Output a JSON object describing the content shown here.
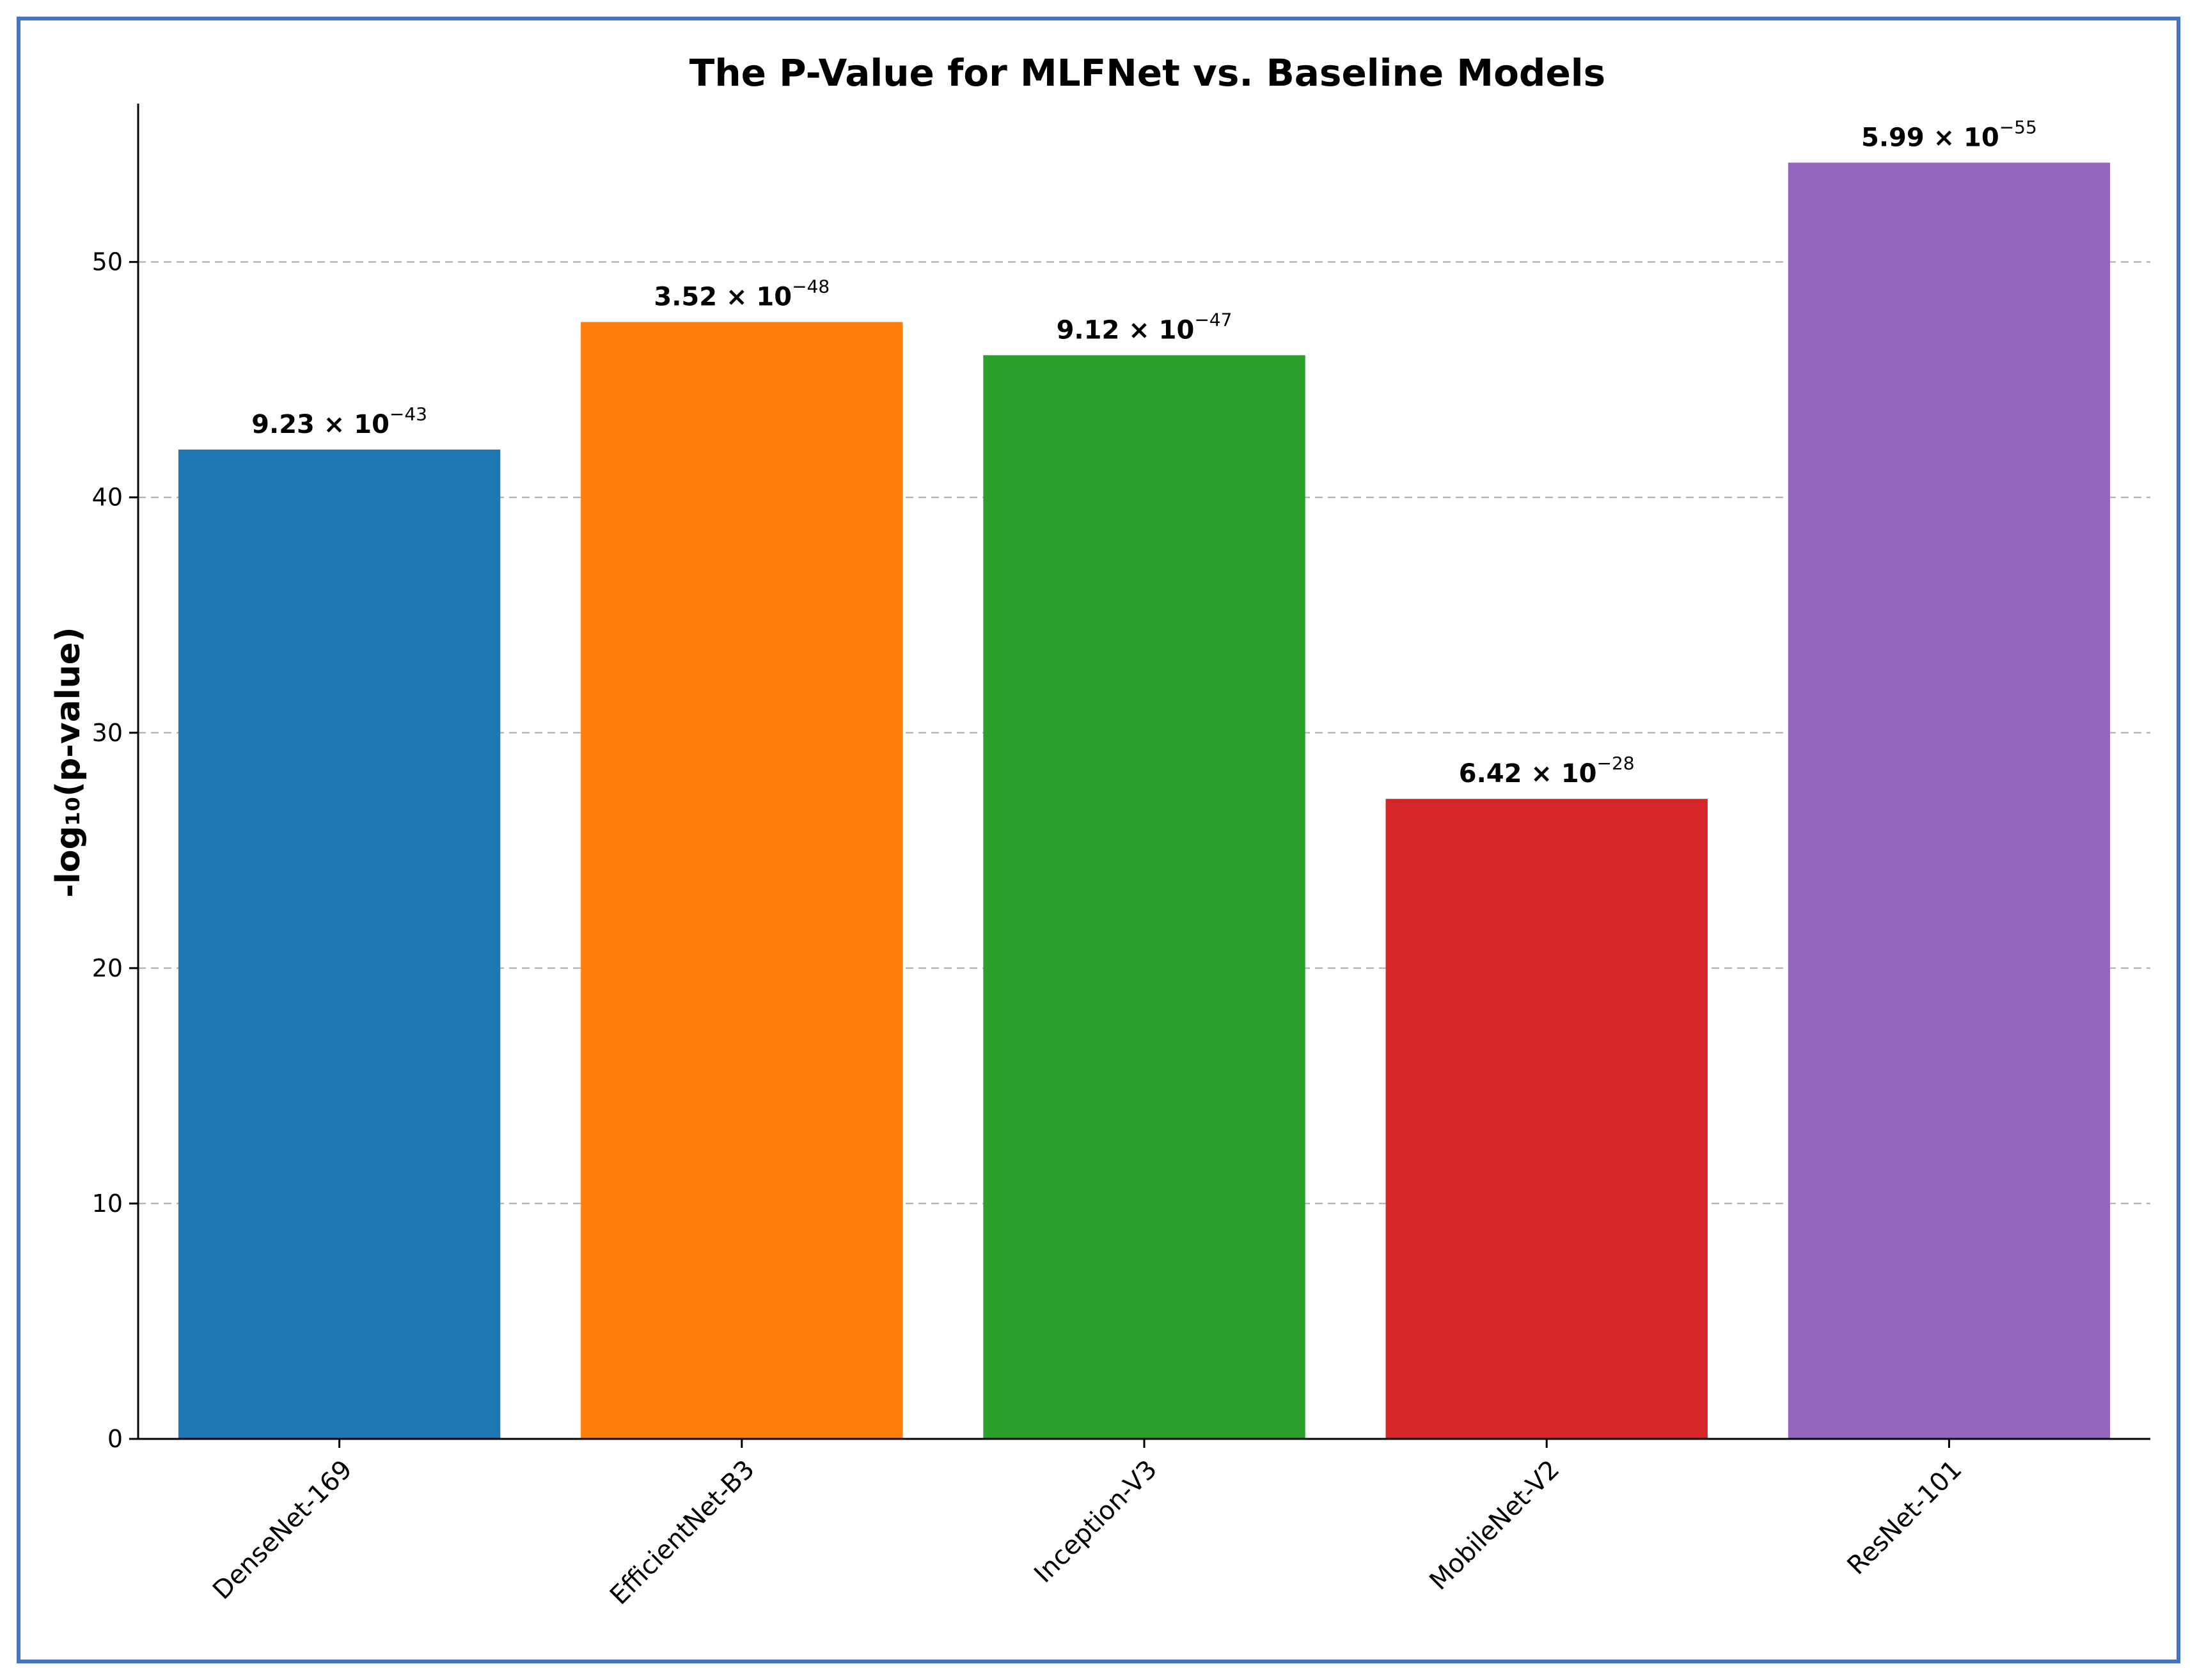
{
  "chart_data": {
    "type": "bar",
    "title": "The P-Value for MLFNet vs. Baseline Models",
    "xlabel": "",
    "ylabel": "-log₁₀(p-value)",
    "categories": [
      "DenseNet-169",
      "EfficientNet-B3",
      "Inception-V3",
      "MobileNet-V2",
      "ResNet-101"
    ],
    "values": [
      42.03,
      47.45,
      46.04,
      27.19,
      54.22
    ],
    "data_labels": [
      {
        "mantissa": "9.23 × 10",
        "exponent": "−43"
      },
      {
        "mantissa": "3.52 × 10",
        "exponent": "−48"
      },
      {
        "mantissa": "9.12 × 10",
        "exponent": "−47"
      },
      {
        "mantissa": "6.42 × 10",
        "exponent": "−28"
      },
      {
        "mantissa": "5.99 × 10",
        "exponent": "−55"
      }
    ],
    "colors": [
      "#1f77b4",
      "#ff7f0e",
      "#2ca02c",
      "#d62728",
      "#9467bd"
    ],
    "ylim": [
      0,
      57
    ],
    "yticks": [
      0,
      10,
      20,
      30,
      40,
      50
    ],
    "grid": "horizontal-dashed",
    "legend": "none"
  }
}
